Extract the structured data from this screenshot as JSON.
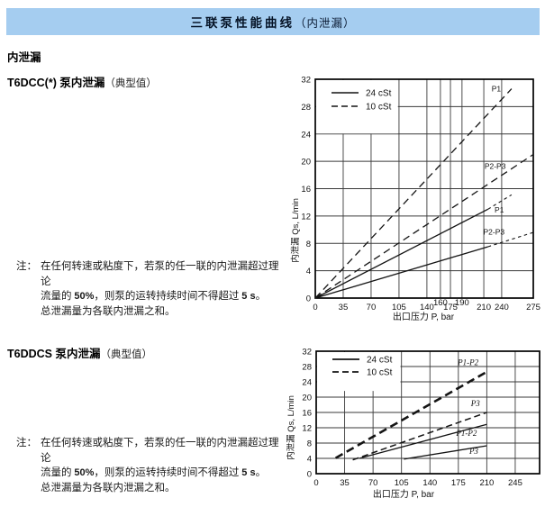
{
  "header": {
    "title_main": "三联泵性能曲线",
    "title_paren": "（内泄漏）",
    "bg_color": "#a5cdf0"
  },
  "section_title": "内泄漏",
  "sections": [
    {
      "heading_bold": "T6DCC(*) 泵内泄漏",
      "heading_paren": "（典型值）",
      "note": {
        "label": "注：",
        "line1": "在任何转速或粘度下，若泵的任一联的内泄漏超过理论",
        "line2_pre": "流量的 ",
        "line2_b1": "50%",
        "line2_mid": "，则泵的运转持续时间不得超过 ",
        "line2_b2": "5 s",
        "line2_post": "。",
        "line3": "总泄漏量为各联内泄漏之和。"
      }
    },
    {
      "heading_bold": "T6DDCS 泵内泄漏",
      "heading_paren": "（典型值）",
      "note": {
        "label": "注：",
        "line1": "在任何转速或粘度下，若泵的任一联的内泄漏超过理论",
        "line2_pre": "流量的 ",
        "line2_b1": "50%",
        "line2_mid": "，则泵的运转持续时间不得超过 ",
        "line2_b2": "5 s",
        "line2_post": "。",
        "line3": "总泄漏量为各联内泄漏之和。"
      }
    }
  ],
  "chart_data": [
    {
      "type": "line",
      "name": "T6DCC internal leakage",
      "xlabel": "出口压力 P, bar",
      "ylabel": "内泄漏 Qs, L/min",
      "ylim": [
        0,
        32
      ],
      "y_ticks": [
        0,
        4,
        8,
        12,
        16,
        20,
        24,
        28,
        32
      ],
      "x_ticks": [
        0,
        35,
        70,
        105,
        140,
        160,
        175,
        190,
        210,
        240,
        275
      ],
      "raised_x_ticks": [
        160,
        190
      ],
      "x_scale": [
        [
          0,
          0
        ],
        [
          35,
          0.128
        ],
        [
          70,
          0.256
        ],
        [
          105,
          0.384
        ],
        [
          140,
          0.512
        ],
        [
          160,
          0.574
        ],
        [
          175,
          0.62
        ],
        [
          190,
          0.673
        ],
        [
          210,
          0.773
        ],
        [
          240,
          0.855
        ],
        [
          275,
          1.0
        ]
      ],
      "grid": true,
      "legend_position": "top-left",
      "legend_clear": {
        "x_to": 105,
        "y_from": 24
      },
      "legend": [
        {
          "label": "24 cSt",
          "dash": "",
          "width": 1.4
        },
        {
          "label": "10 cSt",
          "dash": "7,4",
          "width": 1.4
        }
      ],
      "label_italic": false,
      "label_font_size": 8.5,
      "series": [
        {
          "name": "P1 at 10 cSt",
          "dash": "8,5",
          "width": 1.3,
          "points": [
            [
              0,
              0
            ],
            [
              251,
              30.6
            ]
          ],
          "label": "P1",
          "label_at": [
            231,
            30.2
          ]
        },
        {
          "name": "P2-P3 at 10 cSt",
          "dash": "8,5",
          "width": 1.3,
          "points": [
            [
              0,
              0
            ],
            [
              275,
              21
            ]
          ],
          "label": "P2-P3",
          "label_at": [
            229,
            18.9
          ]
        },
        {
          "name": "P1 at 24 cSt",
          "dash": "",
          "width": 1.3,
          "points": [
            [
              0,
              0
            ],
            [
              217,
              13
            ]
          ]
        },
        {
          "name": "P1 at 24 cSt (extrapolated)",
          "dash": "3.5,3.5",
          "width": 1.1,
          "points": [
            [
              217,
              13
            ],
            [
              251,
              15.1
            ]
          ],
          "label": "P1",
          "label_at": [
            236,
            12.5
          ]
        },
        {
          "name": "P2-P3 at 24 cSt",
          "dash": "",
          "width": 1.3,
          "points": [
            [
              0,
              0
            ],
            [
              217,
              7.5
            ]
          ]
        },
        {
          "name": "P2-P3 at 24 cSt (extrapolated)",
          "dash": "3.5,3.5",
          "width": 1.1,
          "points": [
            [
              217,
              7.5
            ],
            [
              275,
              9.6
            ]
          ],
          "label": "P2-P3",
          "label_at": [
            227,
            9.3
          ]
        }
      ]
    },
    {
      "type": "line",
      "name": "T6DDCS internal leakage",
      "xlabel": "出口压力 P, bar",
      "ylabel": "内泄漏 Qs, L/min",
      "ylim": [
        0,
        32
      ],
      "y_ticks": [
        0,
        4,
        8,
        12,
        16,
        20,
        24,
        28,
        32
      ],
      "x_ticks": [
        0,
        35,
        70,
        105,
        140,
        175,
        210,
        245
      ],
      "raised_x_ticks": [],
      "xlim": [
        0,
        275
      ],
      "grid": true,
      "legend_position": "top-left",
      "legend_clear": {
        "x_to": 105,
        "y_from": 21.5
      },
      "legend": [
        {
          "label": "24 cSt",
          "dash": "",
          "width": 1.8
        },
        {
          "label": "10 cSt",
          "dash": "7,4",
          "width": 1.8
        }
      ],
      "label_italic": true,
      "label_font_size": 9,
      "series": [
        {
          "name": "P1-P2 at 10 cSt",
          "dash": "9,5",
          "width": 2.6,
          "points": [
            [
              24,
              4.1
            ],
            [
              210,
              26.6
            ]
          ],
          "label": "P1-P2",
          "label_at": [
            187,
            28.3
          ]
        },
        {
          "name": "P3 at 10 cSt",
          "dash": "7,4",
          "width": 1.5,
          "points": [
            [
              45,
              3.6
            ],
            [
              210,
              16
            ]
          ],
          "label": "P3",
          "label_at": [
            196,
            17.6
          ]
        },
        {
          "name": "P1-P2 at 24 cSt",
          "dash": "",
          "width": 1.3,
          "points": [
            [
              53,
              4
            ],
            [
              210,
              12.9
            ]
          ],
          "label": "P1-P2",
          "label_at": [
            185,
            9.9
          ]
        },
        {
          "name": "P3 at 24 cSt",
          "dash": "",
          "width": 1.3,
          "points": [
            [
              108,
              3.8
            ],
            [
              210,
              7.3
            ]
          ],
          "label": "P3",
          "label_at": [
            194,
            5.2
          ]
        }
      ]
    }
  ]
}
